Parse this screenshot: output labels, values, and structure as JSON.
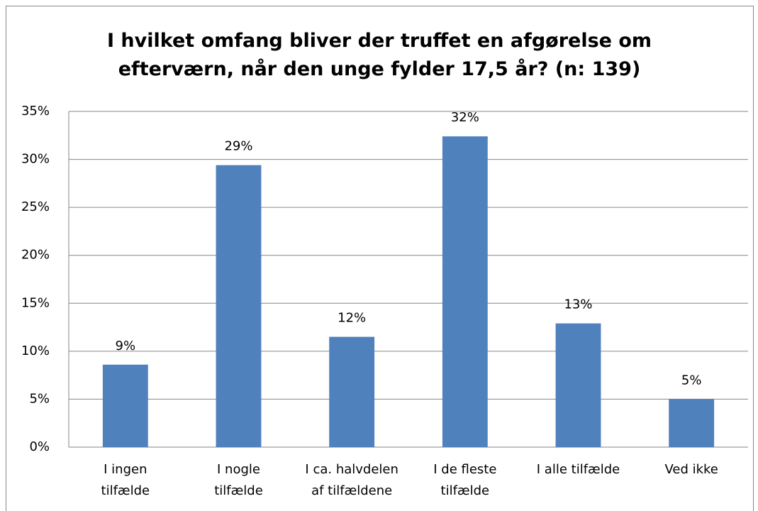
{
  "chart_data": {
    "type": "bar",
    "title": "I hvilket omfang bliver der truffet en afgørelse om efterværn, når den unge fylder 17,5 år? (n: 139)",
    "categories": [
      [
        "I ingen",
        "tilfælde"
      ],
      [
        "I nogle",
        "tilfælde"
      ],
      [
        "I ca. halvdelen",
        "af tilfældene"
      ],
      [
        "I de fleste",
        "tilfælde"
      ],
      [
        "I alle tilfælde"
      ],
      [
        "Ved ikke"
      ]
    ],
    "values": [
      8.6,
      29.4,
      11.5,
      32.4,
      12.9,
      5.0
    ],
    "value_labels": [
      "9%",
      "29%",
      "12%",
      "32%",
      "13%",
      "5%"
    ],
    "color": "#4f81bd",
    "ylim": [
      0,
      35
    ],
    "yticks": [
      {
        "value": 0,
        "label": "0%"
      },
      {
        "value": 5,
        "label": "5%"
      },
      {
        "value": 10,
        "label": "10%"
      },
      {
        "value": 15,
        "label": "15%"
      },
      {
        "value": 20,
        "label": "20%"
      },
      {
        "value": 25,
        "label": "25%"
      },
      {
        "value": 30,
        "label": "30%"
      },
      {
        "value": 35,
        "label": "35%"
      }
    ],
    "grid": true
  }
}
